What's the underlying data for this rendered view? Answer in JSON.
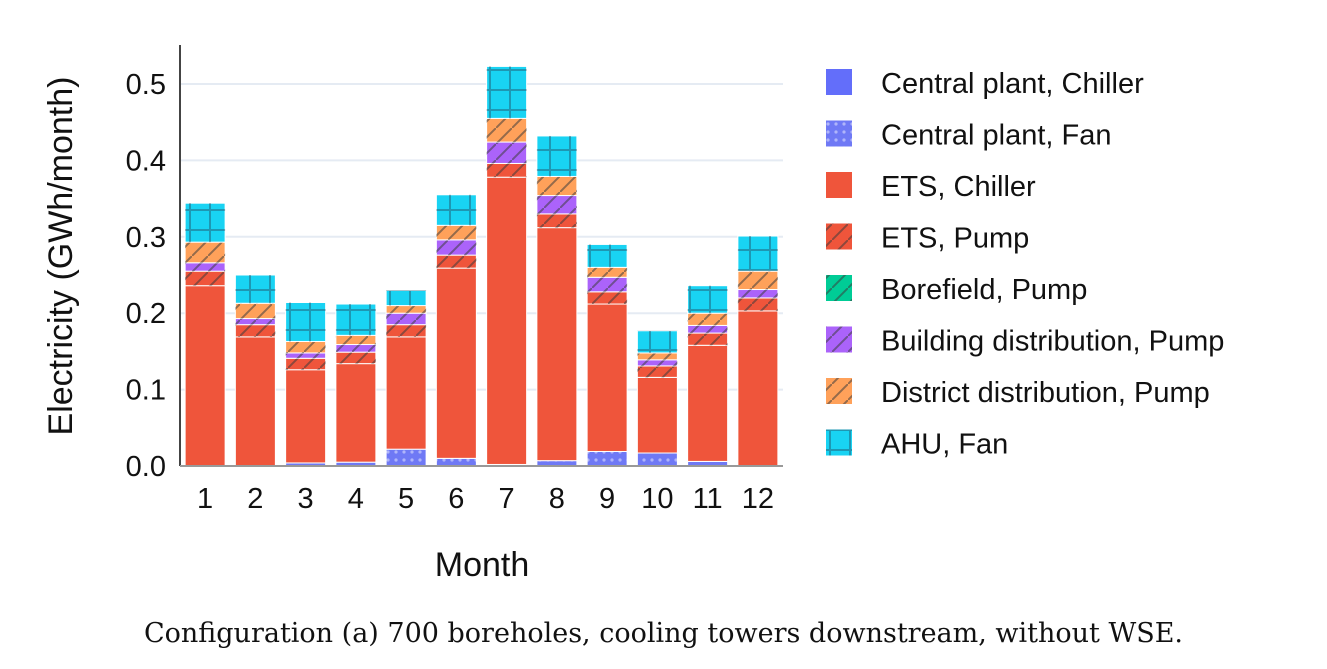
{
  "chart_data": {
    "type": "bar",
    "stacked": true,
    "xlabel": "Month",
    "ylabel": "Electricity (GWh/month)",
    "ylim": [
      0,
      0.55
    ],
    "yticks": [
      0.0,
      0.1,
      0.2,
      0.3,
      0.4,
      0.5
    ],
    "ytick_labels": [
      "0.0",
      "0.1",
      "0.2",
      "0.3",
      "0.4",
      "0.5"
    ],
    "grid": true,
    "legend_position": "right",
    "categories": [
      "1",
      "2",
      "3",
      "4",
      "5",
      "6",
      "7",
      "8",
      "9",
      "10",
      "11",
      "12"
    ],
    "series": [
      {
        "name": "Central plant, Chiller",
        "color": "#636efa",
        "pattern": "none",
        "values": [
          0,
          0,
          0,
          0,
          0,
          0,
          0,
          0,
          0,
          0,
          0,
          0
        ]
      },
      {
        "name": "Central plant, Fan",
        "color": "#6f79f5",
        "pattern": "dots",
        "values": [
          0.0,
          0.0,
          0.004,
          0.005,
          0.022,
          0.01,
          0.002,
          0.007,
          0.019,
          0.017,
          0.006,
          0.0
        ]
      },
      {
        "name": "ETS, Chiller",
        "color": "#ef553b",
        "pattern": "none",
        "values": [
          0.236,
          0.169,
          0.122,
          0.129,
          0.147,
          0.249,
          0.376,
          0.305,
          0.193,
          0.099,
          0.152,
          0.203
        ]
      },
      {
        "name": "ETS, Pump",
        "color": "#ef553b",
        "pattern": "diagonal",
        "values": [
          0.019,
          0.016,
          0.015,
          0.015,
          0.016,
          0.017,
          0.018,
          0.018,
          0.016,
          0.015,
          0.016,
          0.017
        ]
      },
      {
        "name": "Borefield, Pump",
        "color": "#00cc96",
        "pattern": "diagonal",
        "values": [
          0,
          0,
          0,
          0,
          0,
          0,
          0,
          0,
          0,
          0,
          0,
          0
        ]
      },
      {
        "name": "Building distribution, Pump",
        "color": "#ab63fa",
        "pattern": "diagonal",
        "values": [
          0.011,
          0.008,
          0.007,
          0.01,
          0.015,
          0.02,
          0.028,
          0.024,
          0.019,
          0.008,
          0.01,
          0.011
        ]
      },
      {
        "name": "District distribution, Pump",
        "color": "#ffa15a",
        "pattern": "diagonal",
        "values": [
          0.027,
          0.02,
          0.015,
          0.012,
          0.01,
          0.019,
          0.031,
          0.025,
          0.013,
          0.009,
          0.016,
          0.024
        ]
      },
      {
        "name": "AHU, Fan",
        "color": "#19d3f3",
        "pattern": "grid",
        "values": [
          0.051,
          0.037,
          0.051,
          0.041,
          0.02,
          0.04,
          0.068,
          0.053,
          0.03,
          0.029,
          0.036,
          0.046
        ]
      }
    ]
  },
  "caption": "Configuration (a) 700 boreholes, cooling towers downstream, without WSE."
}
